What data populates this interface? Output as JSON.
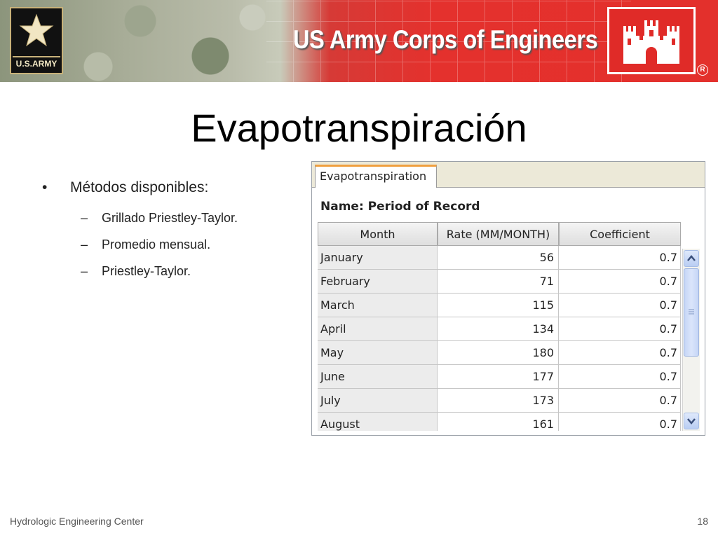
{
  "header": {
    "banner_title": "US Army Corps of Engineers",
    "army_logo_text": "U.S.ARMY",
    "accent_color": "#e3302c"
  },
  "slide": {
    "title": "Evapotranspiración",
    "bullet": "Métodos disponibles:",
    "sub_items": [
      "Grillado Priestley-Taylor.",
      "Promedio mensual.",
      "Priestley-Taylor."
    ]
  },
  "panel": {
    "tab_label": "Evapotranspiration",
    "name_label": "Name: Period of Record",
    "columns": [
      "Month",
      "Rate (MM/MONTH)",
      "Coefficient"
    ],
    "rows": [
      {
        "month": "January",
        "rate": "56",
        "coef": "0.7"
      },
      {
        "month": "February",
        "rate": "71",
        "coef": "0.7"
      },
      {
        "month": "March",
        "rate": "115",
        "coef": "0.7"
      },
      {
        "month": "April",
        "rate": "134",
        "coef": "0.7"
      },
      {
        "month": "May",
        "rate": "180",
        "coef": "0.7"
      },
      {
        "month": "June",
        "rate": "177",
        "coef": "0.7"
      },
      {
        "month": "July",
        "rate": "173",
        "coef": "0.7"
      },
      {
        "month": "August",
        "rate": "161",
        "coef": "0.7"
      }
    ]
  },
  "footer": {
    "org": "Hydrologic Engineering Center",
    "page_number": "18"
  }
}
